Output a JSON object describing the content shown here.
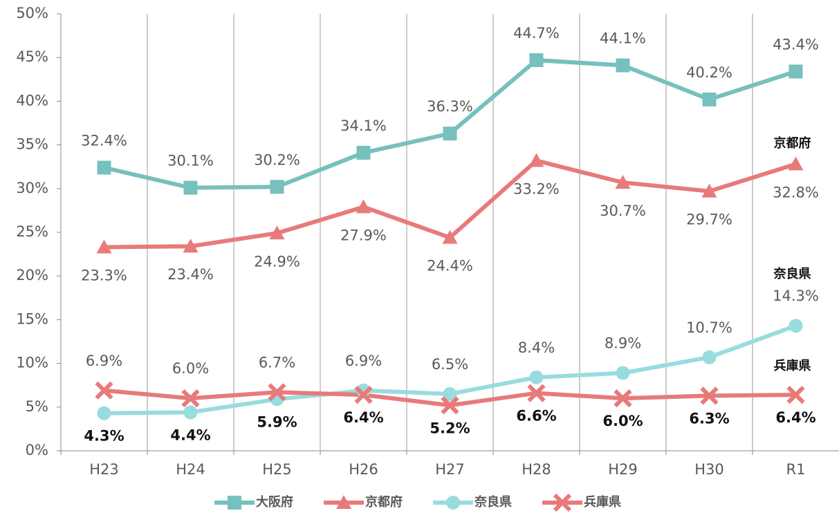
{
  "chart_data": {
    "type": "line",
    "categories": [
      "H23",
      "H24",
      "H25",
      "H26",
      "H27",
      "H28",
      "H29",
      "H30",
      "R1"
    ],
    "ylim": [
      0,
      50
    ],
    "yticks": [
      {
        "value": 0,
        "label": "0%"
      },
      {
        "value": 5,
        "label": "5%"
      },
      {
        "value": 10,
        "label": "10%"
      },
      {
        "value": 15,
        "label": "15%"
      },
      {
        "value": 20,
        "label": "20%"
      },
      {
        "value": 25,
        "label": "25%"
      },
      {
        "value": 30,
        "label": "30%"
      },
      {
        "value": 35,
        "label": "35%"
      },
      {
        "value": 40,
        "label": "40%"
      },
      {
        "value": 45,
        "label": "45%"
      },
      {
        "value": 50,
        "label": "50%"
      }
    ],
    "series": [
      {
        "name": "大阪府",
        "color": "#76c0bd",
        "marker": "square",
        "values": [
          32.4,
          30.1,
          30.2,
          34.1,
          36.3,
          44.7,
          44.1,
          40.2,
          43.4
        ],
        "value_labels": [
          "32.4%",
          "30.1%",
          "30.2%",
          "34.1%",
          "36.3%",
          "44.7%",
          "44.1%",
          "40.2%",
          "43.4%"
        ]
      },
      {
        "name": "京都府",
        "color": "#e87a7a",
        "marker": "triangle",
        "values": [
          23.3,
          23.4,
          24.9,
          27.9,
          24.4,
          33.2,
          30.7,
          29.7,
          32.8
        ],
        "value_labels": [
          "23.3%",
          "23.4%",
          "24.9%",
          "27.9%",
          "24.4%",
          "33.2%",
          "30.7%",
          "29.7%",
          "32.8%"
        ]
      },
      {
        "name": "奈良県",
        "color": "#99dcdf",
        "marker": "circle",
        "values": [
          4.3,
          4.4,
          5.9,
          6.9,
          6.5,
          8.4,
          8.9,
          10.7,
          14.3
        ],
        "value_labels": [
          "4.3%",
          "4.4%",
          "5.9%",
          "6.9%",
          "6.5%",
          "8.4%",
          "8.9%",
          "10.7%",
          "14.3%"
        ]
      },
      {
        "name": "兵庫県",
        "color": "#e87a7a",
        "marker": "x",
        "values": [
          6.9,
          6.0,
          6.7,
          6.4,
          5.2,
          6.6,
          6.0,
          6.3,
          6.4
        ],
        "value_labels": [
          "6.9%",
          "6.0%",
          "6.7%",
          "6.4%",
          "5.2%",
          "6.6%",
          "6.0%",
          "6.3%",
          "6.4%"
        ]
      }
    ]
  }
}
